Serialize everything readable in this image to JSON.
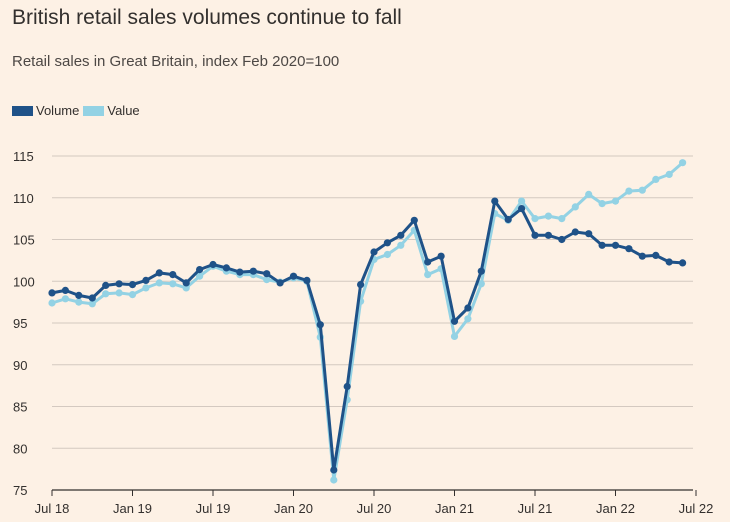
{
  "title": "British retail sales volumes continue to fall",
  "subtitle": "Retail sales in Great Britain, index Feb 2020=100",
  "colors": {
    "volume": "#1f5288",
    "value": "#93d2e4",
    "grid": "#d4c9c0",
    "axis": "#33302e",
    "background": "#fdf1e5"
  },
  "chart_data": {
    "type": "line",
    "title": "British retail sales volumes continue to fall",
    "subtitle": "Retail sales in Great Britain, index Feb 2020=100",
    "ylim": [
      75,
      115
    ],
    "yticks": [
      75,
      80,
      85,
      90,
      95,
      100,
      105,
      110,
      115
    ],
    "xticks": [
      {
        "label": "Jul 18",
        "date": "2018-07"
      },
      {
        "label": "Jan 19",
        "date": "2019-01"
      },
      {
        "label": "Jul 19",
        "date": "2019-07"
      },
      {
        "label": "Jan 20",
        "date": "2020-01"
      },
      {
        "label": "Jul 20",
        "date": "2020-07"
      },
      {
        "label": "Jan 21",
        "date": "2021-01"
      },
      {
        "label": "Jul 21",
        "date": "2021-07"
      },
      {
        "label": "Jan 22",
        "date": "2022-01"
      },
      {
        "label": "Jul 22",
        "date": "2022-07"
      }
    ],
    "grid": true,
    "legend_position": "top-left",
    "x": [
      "2018-07",
      "2018-08",
      "2018-09",
      "2018-10",
      "2018-11",
      "2018-12",
      "2019-01",
      "2019-02",
      "2019-03",
      "2019-04",
      "2019-05",
      "2019-06",
      "2019-07",
      "2019-08",
      "2019-09",
      "2019-10",
      "2019-11",
      "2019-12",
      "2020-01",
      "2020-02",
      "2020-03",
      "2020-04",
      "2020-05",
      "2020-06",
      "2020-07",
      "2020-08",
      "2020-09",
      "2020-10",
      "2020-11",
      "2020-12",
      "2021-01",
      "2021-02",
      "2021-03",
      "2021-04",
      "2021-05",
      "2021-06",
      "2021-07",
      "2021-08",
      "2021-09",
      "2021-10",
      "2021-11",
      "2021-12",
      "2022-01",
      "2022-02",
      "2022-03",
      "2022-04",
      "2022-05",
      "2022-06",
      "2022-07"
    ],
    "series": [
      {
        "name": "Volume",
        "color": "#1f5288",
        "values": [
          98.6,
          98.9,
          98.3,
          98.0,
          99.5,
          99.7,
          99.6,
          100.1,
          101.0,
          100.8,
          99.8,
          101.4,
          102.0,
          101.6,
          101.1,
          101.2,
          100.9,
          99.8,
          100.6,
          100.1,
          94.8,
          77.4,
          87.4,
          99.6,
          103.5,
          104.6,
          105.5,
          107.3,
          102.3,
          103.0,
          95.2,
          96.8,
          101.2,
          109.6,
          107.4,
          108.7,
          105.5,
          105.5,
          105.0,
          105.9,
          105.7,
          104.3,
          104.3,
          103.9,
          103.0,
          103.1,
          102.3,
          102.2,
          null
        ]
      },
      {
        "name": "Value",
        "color": "#93d2e4",
        "values": [
          97.4,
          97.9,
          97.5,
          97.3,
          98.5,
          98.6,
          98.4,
          99.2,
          99.8,
          99.7,
          99.2,
          100.6,
          101.8,
          101.2,
          100.8,
          100.8,
          100.2,
          99.9,
          100.4,
          100.0,
          93.3,
          76.2,
          85.8,
          97.6,
          102.6,
          103.2,
          104.3,
          106.1,
          100.8,
          101.5,
          93.4,
          95.5,
          99.7,
          108.1,
          107.3,
          109.6,
          107.5,
          107.8,
          107.5,
          108.9,
          110.4,
          109.3,
          109.6,
          110.8,
          110.9,
          112.2,
          112.8,
          114.2,
          null
        ]
      }
    ]
  }
}
